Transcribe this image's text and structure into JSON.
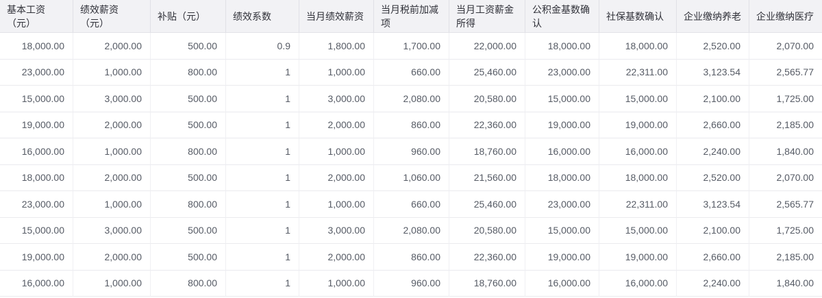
{
  "table": {
    "columns": [
      {
        "id": "base-salary",
        "label": "基本工资\n（元）"
      },
      {
        "id": "performance-salary",
        "label": "绩效薪资\n（元）"
      },
      {
        "id": "subsidy",
        "label": "补贴（元）"
      },
      {
        "id": "performance-coefficient",
        "label": "绩效系数"
      },
      {
        "id": "month-performance-salary",
        "label": "当月绩效薪资"
      },
      {
        "id": "pretax-adjustment",
        "label": "当月税前加减\n项"
      },
      {
        "id": "salary-income",
        "label": "当月工资薪金\n所得"
      },
      {
        "id": "housing-fund-base",
        "label": "公积金基数确\n认"
      },
      {
        "id": "social-insurance-base",
        "label": "社保基数确认"
      },
      {
        "id": "company-pension",
        "label": "企业缴纳养老"
      },
      {
        "id": "company-medical",
        "label": "企业缴纳医疗"
      }
    ],
    "rows": [
      [
        "18,000.00",
        "2,000.00",
        "500.00",
        "0.9",
        "1,800.00",
        "1,700.00",
        "22,000.00",
        "18,000.00",
        "18,000.00",
        "2,520.00",
        "2,070.00"
      ],
      [
        "23,000.00",
        "1,000.00",
        "800.00",
        "1",
        "1,000.00",
        "660.00",
        "25,460.00",
        "23,000.00",
        "22,311.00",
        "3,123.54",
        "2,565.77"
      ],
      [
        "15,000.00",
        "3,000.00",
        "500.00",
        "1",
        "3,000.00",
        "2,080.00",
        "20,580.00",
        "15,000.00",
        "15,000.00",
        "2,100.00",
        "1,725.00"
      ],
      [
        "19,000.00",
        "2,000.00",
        "500.00",
        "1",
        "2,000.00",
        "860.00",
        "22,360.00",
        "19,000.00",
        "19,000.00",
        "2,660.00",
        "2,185.00"
      ],
      [
        "16,000.00",
        "1,000.00",
        "800.00",
        "1",
        "1,000.00",
        "960.00",
        "18,760.00",
        "16,000.00",
        "16,000.00",
        "2,240.00",
        "1,840.00"
      ],
      [
        "18,000.00",
        "2,000.00",
        "500.00",
        "1",
        "2,000.00",
        "1,060.00",
        "21,560.00",
        "18,000.00",
        "18,000.00",
        "2,520.00",
        "2,070.00"
      ],
      [
        "23,000.00",
        "1,000.00",
        "800.00",
        "1",
        "1,000.00",
        "660.00",
        "25,460.00",
        "23,000.00",
        "22,311.00",
        "3,123.54",
        "2,565.77"
      ],
      [
        "15,000.00",
        "3,000.00",
        "500.00",
        "1",
        "3,000.00",
        "2,080.00",
        "20,580.00",
        "15,000.00",
        "15,000.00",
        "2,100.00",
        "1,725.00"
      ],
      [
        "19,000.00",
        "2,000.00",
        "500.00",
        "1",
        "2,000.00",
        "860.00",
        "22,360.00",
        "19,000.00",
        "19,000.00",
        "2,660.00",
        "2,185.00"
      ],
      [
        "16,000.00",
        "1,000.00",
        "800.00",
        "1",
        "1,000.00",
        "960.00",
        "18,760.00",
        "16,000.00",
        "16,000.00",
        "2,240.00",
        "1,840.00"
      ]
    ]
  },
  "colors": {
    "header_bg": "#f2f2f5",
    "header_text": "#303139",
    "cell_text": "#565b65",
    "header_border": "#e0e0e6",
    "row_border": "#eaeaee",
    "column_border": "#f0f0f3"
  }
}
